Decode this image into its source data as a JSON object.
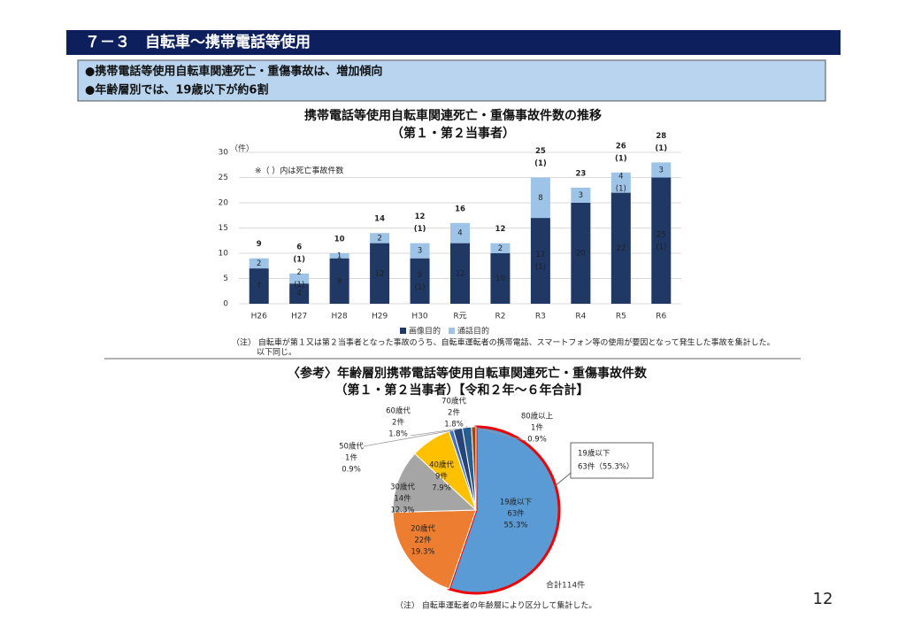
{
  "header": {
    "title": "７－３　自転車～携帯電話等使用"
  },
  "summary": [
    "●携帯電話等使用自転車関連死亡・重傷事故は、増加傾向",
    "●年齢層別では、19歳以下が約6割"
  ],
  "chart_data": [
    {
      "type": "bar",
      "stacked": true,
      "title": "携帯電話等使用自転車関連死亡・重傷事故件数の推移",
      "subtitle": "（第１・第２当事者）",
      "y_label": "（件）",
      "annotation": "※（ ）内は死亡事故件数",
      "categories": [
        "H26",
        "H27",
        "H28",
        "H29",
        "H30",
        "R元",
        "R2",
        "R3",
        "R4",
        "R5",
        "R6"
      ],
      "series": [
        {
          "name": "画像目的",
          "color": "#203864",
          "values": [
            7,
            4,
            9,
            12,
            9,
            12,
            10,
            17,
            20,
            22,
            25
          ],
          "fatal_labels": [
            null,
            null,
            null,
            null,
            "(1)",
            null,
            null,
            "(1)",
            null,
            null,
            "(1)"
          ]
        },
        {
          "name": "通話目的",
          "color": "#9dc3e6",
          "values": [
            2,
            2,
            1,
            2,
            3,
            4,
            2,
            8,
            3,
            4,
            3
          ],
          "fatal_labels": [
            null,
            "(1)",
            null,
            null,
            null,
            null,
            null,
            null,
            null,
            "(1)",
            null
          ]
        }
      ],
      "totals": [
        9,
        6,
        10,
        14,
        12,
        16,
        12,
        25,
        23,
        26,
        28
      ],
      "total_fatal_labels": [
        null,
        "(1)",
        null,
        null,
        "(1)",
        null,
        null,
        "(1)",
        null,
        "(1)",
        "(1)"
      ],
      "ylim": [
        0,
        30
      ],
      "yticks": [
        0,
        5,
        10,
        15,
        20,
        25,
        30
      ],
      "legend": "bottom",
      "note": [
        "（注） 自転車が第１又は第２当事者となった事故のうち、自転車運転者の携帯電話、スマートフォン等の使用が要因となって発生した事故を集計した。",
        "以下同じ。"
      ]
    },
    {
      "type": "pie",
      "title": "〈参考〉年齢層別携帯電話等使用自転車関連死亡・重傷事故件数",
      "subtitle": "（第１・第２当事者）【令和２年～６年合計】",
      "categories": [
        "19歳以下",
        "20歳代",
        "30歳代",
        "40歳代",
        "50歳代",
        "60歳代",
        "70歳代",
        "80歳以上"
      ],
      "values": [
        63,
        22,
        14,
        9,
        1,
        2,
        2,
        1
      ],
      "value_labels": [
        "63件",
        "22件",
        "14件",
        "9件",
        "1件",
        "2件",
        "2件",
        "1件"
      ],
      "percent_labels": [
        "55.3%",
        "19.3%",
        "12.3%",
        "7.9%",
        "0.9%",
        "1.8%",
        "1.8%",
        "0.9%"
      ],
      "colors": [
        "#5b9bd5",
        "#ed7d31",
        "#a5a5a5",
        "#ffc000",
        "#4472c4",
        "#264478",
        "#255e91",
        "#9e480e"
      ],
      "callout_label": "63件（55.3%）",
      "total_label": "合計114件",
      "note": "（注） 自転車運転者の年齢層により区分して集計した。"
    }
  ],
  "page_number": 12
}
